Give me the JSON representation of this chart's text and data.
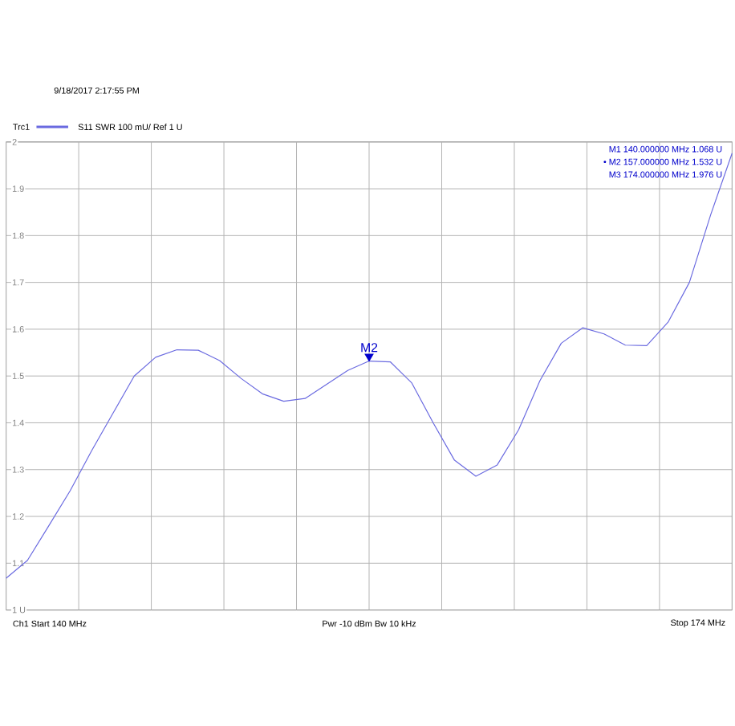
{
  "chart_data": {
    "type": "line",
    "subtitle": "S11  SWR  100 mU/ Ref 1 U",
    "categories": [
      null,
      null,
      null,
      null,
      null,
      null,
      null,
      null,
      null,
      null,
      null,
      null,
      null,
      null,
      null,
      null,
      null,
      null,
      null,
      null,
      null,
      null,
      null,
      null,
      null,
      null,
      null,
      null,
      null,
      null,
      null,
      null,
      null,
      null,
      null
    ],
    "series": [
      {
        "name": "Trc1",
        "color": "#6a6ae0",
        "values": [
          1.068,
          1.106,
          1.18,
          1.255,
          1.34,
          1.42,
          1.5,
          1.54,
          1.556,
          1.555,
          1.533,
          1.495,
          1.462,
          1.446,
          1.452,
          1.482,
          1.512,
          1.532,
          1.53,
          1.485,
          1.4,
          1.32,
          1.286,
          1.31,
          1.385,
          1.49,
          1.57,
          1.603,
          1.59,
          1.566,
          1.565,
          1.615,
          1.7,
          1.845,
          1.976
        ]
      }
    ],
    "ylim": [
      1,
      2
    ],
    "yticks": [
      {
        "value": 1,
        "label": "1 U"
      },
      1.1,
      1.2,
      1.3,
      1.4,
      1.5,
      1.6,
      1.7,
      1.8,
      1.9,
      2
    ],
    "grid": true,
    "legend": "top left",
    "marker": "none",
    "line_style": "solid",
    "annotations": [
      "9/18/2017 2:17:55 PM",
      "M1  140.000000 MHz  1.068 U",
      "• M2  157.000000 MHz  1.532 U",
      "M3  174.000000 MHz  1.976 U",
      "Ch1  Start  140 MHz",
      "Pwr  -10 dBm  Bw  10 kHz",
      "Stop  174 MHz",
      "M2"
    ]
  }
}
